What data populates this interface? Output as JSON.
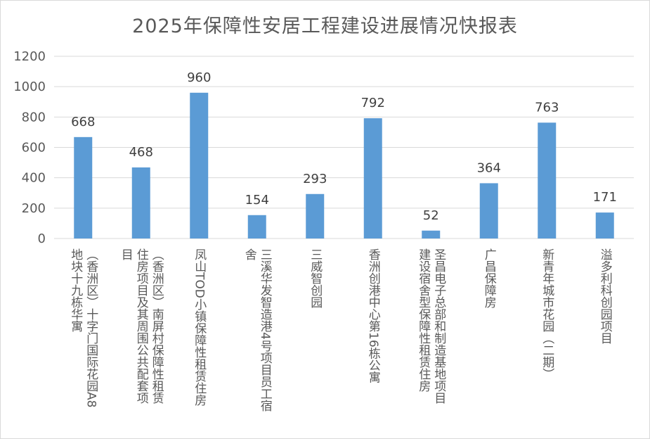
{
  "chart_data": {
    "type": "bar",
    "title": "2025年保障性安居工程建设进展情况快报表",
    "xlabel": "",
    "ylabel": "",
    "ylim": [
      0,
      1200
    ],
    "yticks": [
      0,
      200,
      400,
      600,
      800,
      1000,
      1200
    ],
    "grid": true,
    "legend": "none",
    "bar_color": "#5b9bd5",
    "categories": [
      "（香洲区）十字门国际花园A8地块十九栋华寓",
      "（香洲区）南屏村保障性租赁住房项目及其周围公共配套项目",
      "凤山TOD小镇保障性租赁住房",
      "三溪华发智造港4号项目员工宿舍",
      "三威智创园",
      "香洲创港中心第16栋公寓",
      "圣昌电子总部和制造基地项目建设宿舍型保障性租赁住房",
      "广昌保障房",
      "新青年城市花园（二期）",
      "溢多利科创园项目"
    ],
    "category_lines": [
      [
        "（香洲区）十字门国际花园A8",
        "地块十九栋华寓"
      ],
      [
        "（香洲区）南屏村保障性租赁",
        "住房项目及其周围公共配套项",
        "目"
      ],
      [
        "凤山TOD小镇保障性租赁住房"
      ],
      [
        "三溪华发智造港4号项目员工宿",
        "舍"
      ],
      [
        "三威智创园"
      ],
      [
        "香洲创港中心第16栋公寓"
      ],
      [
        "圣昌电子总部和制造基地项目",
        "建设宿舍型保障性租赁住房"
      ],
      [
        "广昌保障房"
      ],
      [
        "新青年城市花园（二期）"
      ],
      [
        "溢多利科创园项目"
      ]
    ],
    "values": [
      668,
      468,
      960,
      154,
      293,
      792,
      52,
      364,
      763,
      171
    ]
  }
}
